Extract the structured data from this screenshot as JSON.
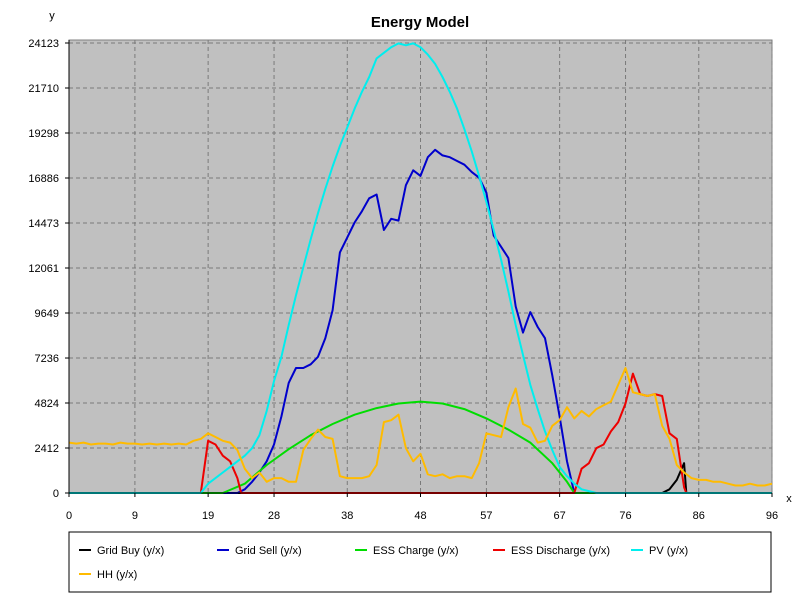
{
  "chart_data": {
    "type": "line",
    "title": "Energy Model",
    "xlabel": "x",
    "ylabel": "y",
    "xlim": [
      0,
      96
    ],
    "ylim": [
      0,
      24123
    ],
    "xticks": [
      "0",
      "9",
      "19",
      "28",
      "38",
      "48",
      "57",
      "67",
      "76",
      "86",
      "96"
    ],
    "yticks": [
      "0",
      "2412",
      "4824",
      "7236",
      "9649",
      "12061",
      "14473",
      "16886",
      "19298",
      "21710",
      "24123"
    ],
    "grid": true,
    "legend_position": "bottom",
    "series": [
      {
        "name": "Grid Buy (y/x)",
        "color": "#000000",
        "points": [
          [
            0,
            0
          ],
          [
            81,
            0
          ],
          [
            82,
            200
          ],
          [
            83,
            700
          ],
          [
            84,
            1600
          ],
          [
            84.3,
            0
          ]
        ]
      },
      {
        "name": "Grid Sell (y/x)",
        "color": "#0000cc",
        "points": [
          [
            0,
            0
          ],
          [
            23,
            0
          ],
          [
            24,
            200
          ],
          [
            25,
            600
          ],
          [
            26,
            1100
          ],
          [
            27,
            1700
          ],
          [
            28,
            2600
          ],
          [
            29,
            4100
          ],
          [
            30,
            5900
          ],
          [
            31,
            6700
          ],
          [
            32,
            6700
          ],
          [
            33,
            6900
          ],
          [
            34,
            7300
          ],
          [
            35,
            8300
          ],
          [
            36,
            9800
          ],
          [
            37,
            12900
          ],
          [
            38,
            13700
          ],
          [
            39,
            14500
          ],
          [
            40,
            15100
          ],
          [
            41,
            15800
          ],
          [
            42,
            16000
          ],
          [
            43,
            14100
          ],
          [
            44,
            14700
          ],
          [
            45,
            14600
          ],
          [
            46,
            16500
          ],
          [
            47,
            17300
          ],
          [
            48,
            17000
          ],
          [
            49,
            18000
          ],
          [
            50,
            18400
          ],
          [
            51,
            18100
          ],
          [
            52,
            18000
          ],
          [
            53,
            17800
          ],
          [
            54,
            17600
          ],
          [
            55,
            17200
          ],
          [
            56,
            16900
          ],
          [
            57,
            16100
          ],
          [
            58,
            13800
          ],
          [
            59,
            13200
          ],
          [
            60,
            12600
          ],
          [
            61,
            10000
          ],
          [
            62,
            8600
          ],
          [
            63,
            9700
          ],
          [
            64,
            8900
          ],
          [
            65,
            8300
          ],
          [
            66,
            6300
          ],
          [
            67,
            4100
          ],
          [
            68,
            1700
          ],
          [
            69,
            0
          ],
          [
            96,
            0
          ]
        ]
      },
      {
        "name": "ESS Charge (y/x)",
        "color": "#00dd00",
        "points": [
          [
            0,
            0
          ],
          [
            21,
            0
          ],
          [
            24,
            500
          ],
          [
            27,
            1500
          ],
          [
            30,
            2350
          ],
          [
            33,
            3100
          ],
          [
            36,
            3700
          ],
          [
            39,
            4200
          ],
          [
            42,
            4550
          ],
          [
            45,
            4800
          ],
          [
            48,
            4900
          ],
          [
            51,
            4800
          ],
          [
            54,
            4500
          ],
          [
            57,
            4000
          ],
          [
            60,
            3400
          ],
          [
            63,
            2700
          ],
          [
            66,
            1600
          ],
          [
            68,
            600
          ],
          [
            69,
            0
          ],
          [
            96,
            0
          ]
        ]
      },
      {
        "name": "ESS Discharge (y/x)",
        "color": "#ee0000",
        "points": [
          [
            0,
            0
          ],
          [
            18,
            0
          ],
          [
            19,
            2800
          ],
          [
            20,
            2600
          ],
          [
            21,
            2000
          ],
          [
            22,
            1700
          ],
          [
            23,
            800
          ],
          [
            23.5,
            0
          ],
          [
            69,
            0
          ],
          [
            70,
            1300
          ],
          [
            71,
            1600
          ],
          [
            72,
            2400
          ],
          [
            73,
            2600
          ],
          [
            74,
            3300
          ],
          [
            75,
            3800
          ],
          [
            76,
            4800
          ],
          [
            77,
            6400
          ],
          [
            78,
            5300
          ],
          [
            79,
            5200
          ],
          [
            80,
            5300
          ],
          [
            81,
            5200
          ],
          [
            82,
            3200
          ],
          [
            83,
            2900
          ],
          [
            84,
            300
          ],
          [
            84.3,
            0
          ],
          [
            96,
            0
          ]
        ]
      },
      {
        "name": "PV (y/x)",
        "color": "#00eeee",
        "points": [
          [
            0,
            0
          ],
          [
            18,
            0
          ],
          [
            19,
            500
          ],
          [
            20,
            800
          ],
          [
            21,
            1100
          ],
          [
            22,
            1400
          ],
          [
            23,
            1700
          ],
          [
            24,
            2000
          ],
          [
            25,
            2400
          ],
          [
            26,
            3100
          ],
          [
            27,
            4400
          ],
          [
            28,
            6000
          ],
          [
            29,
            7300
          ],
          [
            30,
            9000
          ],
          [
            31,
            10600
          ],
          [
            32,
            12100
          ],
          [
            33,
            13600
          ],
          [
            34,
            15000
          ],
          [
            35,
            16300
          ],
          [
            36,
            17500
          ],
          [
            37,
            18600
          ],
          [
            38,
            19600
          ],
          [
            39,
            20600
          ],
          [
            40,
            21500
          ],
          [
            41,
            22300
          ],
          [
            42,
            23300
          ],
          [
            43,
            23600
          ],
          [
            44,
            23900
          ],
          [
            45,
            24100
          ],
          [
            46,
            24000
          ],
          [
            47,
            24100
          ],
          [
            48,
            23900
          ],
          [
            49,
            23500
          ],
          [
            50,
            23000
          ],
          [
            51,
            22300
          ],
          [
            52,
            21500
          ],
          [
            53,
            20600
          ],
          [
            54,
            19500
          ],
          [
            55,
            18300
          ],
          [
            56,
            17000
          ],
          [
            57,
            15600
          ],
          [
            58,
            14100
          ],
          [
            59,
            12500
          ],
          [
            60,
            10800
          ],
          [
            61,
            9000
          ],
          [
            62,
            7400
          ],
          [
            63,
            5800
          ],
          [
            64,
            4500
          ],
          [
            65,
            3300
          ],
          [
            66,
            2300
          ],
          [
            67,
            1400
          ],
          [
            68,
            900
          ],
          [
            69,
            500
          ],
          [
            70,
            200
          ],
          [
            71,
            100
          ],
          [
            72,
            0
          ],
          [
            96,
            0
          ]
        ]
      },
      {
        "name": "HH (y/x)",
        "color": "#ffbb00",
        "points": [
          [
            0,
            2700
          ],
          [
            1,
            2650
          ],
          [
            2,
            2700
          ],
          [
            3,
            2600
          ],
          [
            4,
            2650
          ],
          [
            5,
            2650
          ],
          [
            6,
            2600
          ],
          [
            7,
            2700
          ],
          [
            8,
            2650
          ],
          [
            9,
            2650
          ],
          [
            10,
            2600
          ],
          [
            11,
            2650
          ],
          [
            12,
            2600
          ],
          [
            13,
            2650
          ],
          [
            14,
            2600
          ],
          [
            15,
            2650
          ],
          [
            16,
            2600
          ],
          [
            17,
            2800
          ],
          [
            18,
            2900
          ],
          [
            19,
            3200
          ],
          [
            20,
            3000
          ],
          [
            21,
            2800
          ],
          [
            22,
            2700
          ],
          [
            23,
            2300
          ],
          [
            24,
            1300
          ],
          [
            25,
            800
          ],
          [
            26,
            1100
          ],
          [
            27,
            600
          ],
          [
            28,
            800
          ],
          [
            29,
            800
          ],
          [
            30,
            600
          ],
          [
            31,
            600
          ],
          [
            32,
            2300
          ],
          [
            33,
            2900
          ],
          [
            34,
            3400
          ],
          [
            35,
            3000
          ],
          [
            36,
            2900
          ],
          [
            37,
            900
          ],
          [
            38,
            800
          ],
          [
            39,
            800
          ],
          [
            40,
            800
          ],
          [
            41,
            900
          ],
          [
            42,
            1500
          ],
          [
            43,
            3800
          ],
          [
            44,
            3900
          ],
          [
            45,
            4200
          ],
          [
            46,
            2400
          ],
          [
            47,
            1700
          ],
          [
            48,
            2100
          ],
          [
            49,
            1000
          ],
          [
            50,
            900
          ],
          [
            51,
            1000
          ],
          [
            52,
            800
          ],
          [
            53,
            900
          ],
          [
            54,
            900
          ],
          [
            55,
            800
          ],
          [
            56,
            1600
          ],
          [
            57,
            3200
          ],
          [
            58,
            3100
          ],
          [
            59,
            3000
          ],
          [
            60,
            4600
          ],
          [
            61,
            5600
          ],
          [
            62,
            3700
          ],
          [
            63,
            3500
          ],
          [
            64,
            2700
          ],
          [
            65,
            2800
          ],
          [
            66,
            3600
          ],
          [
            67,
            3900
          ],
          [
            68,
            4600
          ],
          [
            69,
            4000
          ],
          [
            70,
            4400
          ],
          [
            71,
            4100
          ],
          [
            72,
            4500
          ],
          [
            73,
            4700
          ],
          [
            74,
            4900
          ],
          [
            75,
            5800
          ],
          [
            76,
            6700
          ],
          [
            77,
            5400
          ],
          [
            78,
            5300
          ],
          [
            79,
            5200
          ],
          [
            80,
            5300
          ],
          [
            81,
            3600
          ],
          [
            82,
            2900
          ],
          [
            83,
            1500
          ],
          [
            84,
            1100
          ],
          [
            85,
            800
          ],
          [
            86,
            700
          ],
          [
            87,
            700
          ],
          [
            88,
            600
          ],
          [
            89,
            600
          ],
          [
            90,
            500
          ],
          [
            91,
            400
          ],
          [
            92,
            400
          ],
          [
            93,
            500
          ],
          [
            94,
            400
          ],
          [
            95,
            400
          ],
          [
            96,
            500
          ]
        ]
      }
    ]
  }
}
